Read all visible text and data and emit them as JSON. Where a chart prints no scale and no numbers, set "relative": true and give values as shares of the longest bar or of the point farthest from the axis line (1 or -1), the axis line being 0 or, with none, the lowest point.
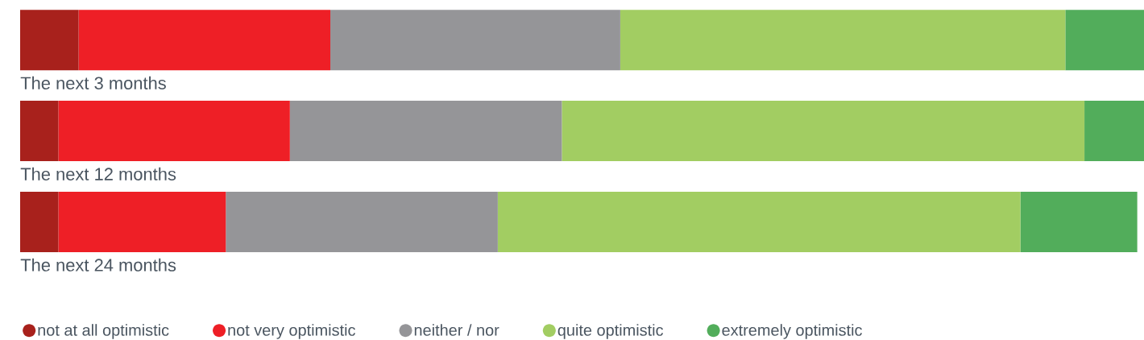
{
  "chart_data": {
    "type": "bar",
    "orientation": "horizontal",
    "stacked": true,
    "relative": true,
    "legend": "bottom",
    "categories": [
      "The next 3 months",
      "The next 12 months",
      "The next 24 months"
    ],
    "series": [
      {
        "name": "not at all optimistic",
        "color": "#a8211c",
        "values": [
          0.052,
          0.034,
          0.034
        ]
      },
      {
        "name": "not very optimistic",
        "color": "#ee1f26",
        "values": [
          0.224,
          0.206,
          0.149
        ]
      },
      {
        "name": "neither / nor",
        "color": "#959598",
        "values": [
          0.258,
          0.242,
          0.242
        ]
      },
      {
        "name": "quite optimistic",
        "color": "#a2cd62",
        "values": [
          0.396,
          0.465,
          0.465
        ]
      },
      {
        "name": "extremely optimistic",
        "color": "#52ad5b",
        "values": [
          0.07,
          0.053,
          0.104
        ]
      }
    ]
  }
}
